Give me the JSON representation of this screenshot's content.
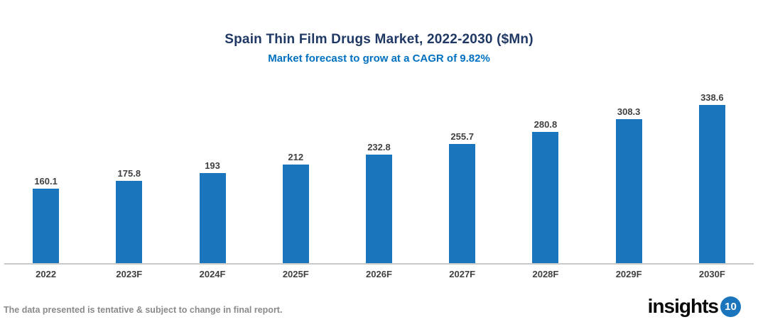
{
  "header": {
    "title": "Spain Thin Film Drugs Market, 2022-2030 ($Mn)",
    "subtitle": "Market forecast to grow at a CAGR of 9.82%"
  },
  "chart_data": {
    "type": "bar",
    "categories": [
      "2022",
      "2023F",
      "2024F",
      "2025F",
      "2026F",
      "2027F",
      "2028F",
      "2029F",
      "2030F"
    ],
    "values": [
      160.1,
      175.8,
      193,
      212,
      232.8,
      255.7,
      280.8,
      308.3,
      338.6
    ],
    "title": "Spain Thin Film Drugs Market, 2022-2030 ($Mn)",
    "subtitle": "Market forecast to grow at a CAGR of 9.82%",
    "xlabel": "",
    "ylabel": "",
    "ylim": [
      0,
      385
    ],
    "grid": false,
    "legend": false,
    "bar_color": "#1B75BC",
    "value_label_color": "#404040",
    "axis_line_color": "#C9C9C9"
  },
  "footer": {
    "disclaimer": "The data presented is tentative & subject to change in final report.",
    "logo_text": "insights",
    "logo_badge": "10"
  },
  "colors": {
    "title": "#1F3864",
    "subtitle": "#0070C0",
    "bar": "#1B75BC",
    "axis_line": "#C9C9C9",
    "footer_text": "#8A8A8A",
    "logo_badge_bg": "#1B75BC"
  }
}
